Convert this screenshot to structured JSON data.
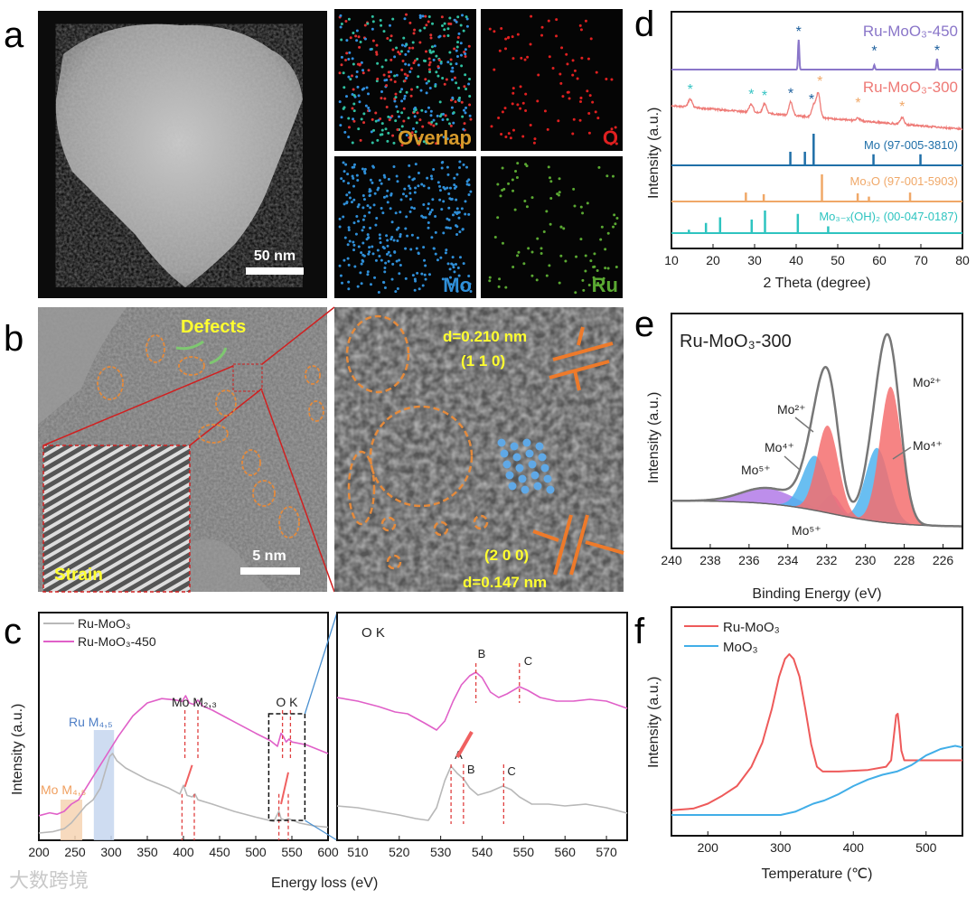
{
  "panel_labels": {
    "a": "a",
    "b": "b",
    "c": "c",
    "d": "d",
    "e": "e",
    "f": "f"
  },
  "panel_a": {
    "scale_bar": "50 nm",
    "maps": [
      {
        "label": "Overlap",
        "color": "#d79a2b"
      },
      {
        "label": "O",
        "color": "#e02020"
      },
      {
        "label": "Mo",
        "color": "#2f8fd8"
      },
      {
        "label": "Ru",
        "color": "#5aa832"
      }
    ]
  },
  "panel_b": {
    "defects_label": "Defects",
    "strain_label": "Strain",
    "scale_bar": "5 nm",
    "d1": "d=0.210 nm",
    "plane1": "(1 1 0)",
    "plane2": "(2 0 0)",
    "d2": "d=0.147 nm"
  },
  "watermark": "大数跨境",
  "chart_data": [
    {
      "id": "c-left",
      "type": "line",
      "xlabel": "Energy loss (eV)",
      "ylabel": "Intensity (a.u.)",
      "xlim": [
        200,
        600
      ],
      "xticks": [
        "200",
        "250",
        "300",
        "350",
        "400",
        "450",
        "500",
        "550",
        "600"
      ],
      "legend": [
        {
          "name": "Ru-MoO₃",
          "color": "#b8b8b8"
        },
        {
          "name": "Ru-MoO₃-450",
          "color": "#e060c8"
        }
      ],
      "legend_position": "top-left",
      "annotations": {
        "mo_m23": "Mo M₂,₃",
        "ok": "O K",
        "ru_m45": "Ru M₄,₅",
        "mo_m45": "Mo M₄,₅"
      },
      "shaded": [
        {
          "name": "Mo M4,5",
          "range": [
            230,
            260
          ],
          "color": "#f6d3b3"
        },
        {
          "name": "Ru M4,5",
          "range": [
            276,
            304
          ],
          "color": "#c6d6ef"
        }
      ],
      "dashed_box": [
        518,
        568
      ],
      "markers_gray": [
        398,
        415,
        532,
        545
      ],
      "markers_pink": [
        402,
        420,
        537,
        548
      ],
      "series": [
        {
          "name": "Ru-MoO₃-450",
          "color": "#e060c8",
          "x": [
            200,
            215,
            225,
            235,
            245,
            255,
            265,
            275,
            285,
            295,
            310,
            330,
            350,
            370,
            390,
            398,
            403,
            408,
            414,
            420,
            426,
            440,
            470,
            500,
            520,
            530,
            535,
            538,
            542,
            546,
            550,
            570,
            600
          ],
          "y": [
            0.17,
            0.19,
            0.18,
            0.2,
            0.25,
            0.28,
            0.36,
            0.44,
            0.52,
            0.6,
            0.72,
            0.86,
            0.95,
            0.98,
            0.97,
            0.96,
            1.0,
            0.95,
            0.94,
            0.97,
            0.93,
            0.9,
            0.82,
            0.74,
            0.69,
            0.65,
            0.74,
            0.72,
            0.68,
            0.7,
            0.68,
            0.66,
            0.6
          ]
        },
        {
          "name": "Ru-MoO₃",
          "color": "#b8b8b8",
          "x": [
            200,
            220,
            235,
            245,
            255,
            265,
            275,
            285,
            292,
            298,
            302,
            308,
            320,
            350,
            380,
            395,
            400,
            405,
            412,
            416,
            420,
            440,
            470,
            500,
            525,
            532,
            535,
            540,
            545,
            560,
            580,
            600
          ],
          "y": [
            0.05,
            0.06,
            0.08,
            0.12,
            0.18,
            0.24,
            0.28,
            0.36,
            0.48,
            0.58,
            0.6,
            0.55,
            0.5,
            0.42,
            0.36,
            0.32,
            0.38,
            0.31,
            0.3,
            0.32,
            0.28,
            0.25,
            0.2,
            0.16,
            0.13,
            0.2,
            0.15,
            0.14,
            0.15,
            0.12,
            0.1,
            0.09
          ]
        }
      ]
    },
    {
      "id": "c-right",
      "type": "line",
      "title": "O K",
      "xlim": [
        505,
        575
      ],
      "xticks": [
        "510",
        "520",
        "530",
        "540",
        "550",
        "560",
        "570"
      ],
      "peak_labels_pink": [
        {
          "label": "B",
          "x": 538.5
        },
        {
          "label": "C",
          "x": 549
        }
      ],
      "peak_labels_gray": [
        {
          "label": "A",
          "x": 532.5
        },
        {
          "label": "B",
          "x": 535.5
        },
        {
          "label": "C",
          "x": 545.2
        }
      ],
      "series": [
        {
          "name": "Ru-MoO₃-450",
          "color": "#e060c8",
          "x": [
            505,
            510,
            515,
            519,
            522,
            526,
            529,
            531,
            533,
            535,
            537,
            538.5,
            540,
            542,
            544,
            546,
            549,
            551,
            554,
            558,
            562,
            566,
            570,
            575
          ],
          "y": [
            0.79,
            0.77,
            0.74,
            0.71,
            0.7,
            0.65,
            0.61,
            0.66,
            0.77,
            0.86,
            0.91,
            0.93,
            0.9,
            0.82,
            0.79,
            0.81,
            0.85,
            0.83,
            0.79,
            0.77,
            0.77,
            0.78,
            0.77,
            0.73
          ]
        },
        {
          "name": "Ru-MoO₃",
          "color": "#b8b8b8",
          "x": [
            505,
            510,
            515,
            520,
            524,
            527,
            529,
            531,
            532.5,
            534,
            535.5,
            537,
            539,
            542,
            545,
            547,
            549,
            552,
            556,
            560,
            565,
            570,
            575
          ],
          "y": [
            0.19,
            0.18,
            0.16,
            0.14,
            0.12,
            0.11,
            0.18,
            0.33,
            0.41,
            0.37,
            0.34,
            0.29,
            0.25,
            0.27,
            0.3,
            0.28,
            0.24,
            0.2,
            0.2,
            0.19,
            0.2,
            0.18,
            0.15
          ]
        }
      ]
    },
    {
      "id": "d",
      "type": "line",
      "xlabel": "2 Theta (degree)",
      "ylabel": "Intensity (a.u.)",
      "xlim": [
        10,
        80
      ],
      "xticks": [
        "10",
        "20",
        "30",
        "40",
        "50",
        "60",
        "70",
        "80"
      ],
      "patterns": [
        {
          "name": "Ru-MoO₃-450",
          "color": "#8a76c9",
          "kind": "measured",
          "peaks": [
            [
              40.6,
              1.0
            ],
            [
              58.8,
              0.15
            ],
            [
              73.9,
              0.36
            ]
          ],
          "stars": [
            {
              "x": 40.6,
              "color": "#1b5e9c"
            },
            {
              "x": 58.8,
              "color": "#1b5e9c"
            },
            {
              "x": 73.9,
              "color": "#1b5e9c"
            }
          ]
        },
        {
          "name": "Ru-MoO₃-300",
          "color": "#ee7a76",
          "kind": "measured",
          "peaks": [
            [
              14.5,
              0.3
            ],
            [
              29.2,
              0.3
            ],
            [
              32.4,
              0.35
            ],
            [
              38.7,
              0.5
            ],
            [
              44.2,
              0.45
            ],
            [
              45.3,
              0.9
            ],
            [
              54.9,
              0.1
            ],
            [
              65.5,
              0.25
            ]
          ],
          "stars": [
            {
              "x": 14.5,
              "color": "#35c3c3"
            },
            {
              "x": 29.2,
              "color": "#35c3c3"
            },
            {
              "x": 32.4,
              "color": "#35c3c3"
            },
            {
              "x": 38.7,
              "color": "#1b5e9c"
            },
            {
              "x": 43.7,
              "color": "#1b5e9c"
            },
            {
              "x": 45.7,
              "color": "#f0a868"
            },
            {
              "x": 54.9,
              "color": "#f0a868"
            },
            {
              "x": 65.5,
              "color": "#f0a868"
            }
          ]
        },
        {
          "name": "Mo (97-005-3810)",
          "color": "#1f6fa8",
          "kind": "reference",
          "sticks": [
            [
              38.6,
              0.43
            ],
            [
              42.1,
              0.43
            ],
            [
              44.2,
              1.0
            ],
            [
              58.6,
              0.35
            ],
            [
              69.9,
              0.35
            ]
          ]
        },
        {
          "name": "Mo₃O (97-001-5903)",
          "color": "#f0a868",
          "kind": "reference",
          "sticks": [
            [
              27.9,
              0.33
            ],
            [
              32.2,
              0.27
            ],
            [
              46.2,
              1.0
            ],
            [
              54.8,
              0.3
            ],
            [
              57.5,
              0.18
            ],
            [
              67.4,
              0.33
            ]
          ]
        },
        {
          "name": "Mo₃₋ₓ(OH)₂ (00-047-0187)",
          "color": "#2ec4c0",
          "kind": "reference",
          "sticks": [
            [
              14.2,
              0.15
            ],
            [
              18.3,
              0.45
            ],
            [
              21.7,
              0.7
            ],
            [
              29.3,
              0.6
            ],
            [
              32.5,
              1.0
            ],
            [
              40.4,
              0.85
            ],
            [
              47.7,
              0.3
            ]
          ]
        }
      ]
    },
    {
      "id": "e",
      "type": "area",
      "title": "Ru-MoO₃-300",
      "xlabel": "Binding Energy (eV)",
      "ylabel": "Intensity (a.u.)",
      "xlim": [
        240,
        225
      ],
      "xticks": [
        "240",
        "238",
        "236",
        "234",
        "232",
        "230",
        "228",
        "226"
      ],
      "components": [
        {
          "name": "Mo⁵⁺",
          "color": "#b27ae8",
          "center": 235.0,
          "fwhm": 3.2,
          "height": 0.11
        },
        {
          "name": "Mo⁵⁺",
          "color": "#b27ae8",
          "center": 231.7,
          "fwhm": 1.0,
          "height": 0.14
        },
        {
          "name": "Mo⁴⁺",
          "color": "#4fb3ee",
          "center": 232.6,
          "fwhm": 1.5,
          "height": 0.4
        },
        {
          "name": "Mo⁴⁺",
          "color": "#4fb3ee",
          "center": 229.4,
          "fwhm": 1.4,
          "height": 0.54
        },
        {
          "name": "Mo²⁺",
          "color": "#f46e6e",
          "center": 231.95,
          "fwhm": 1.3,
          "height": 0.64
        },
        {
          "name": "Mo²⁺",
          "color": "#f46e6e",
          "center": 228.7,
          "fwhm": 1.3,
          "height": 1.0
        }
      ],
      "labels": {
        "mo2_left": "Mo²⁺",
        "mo4_left": "Mo⁴⁺",
        "mo5_left": "Mo⁵⁺",
        "mo2_right": "Mo²⁺",
        "mo4_right": "Mo⁴⁺",
        "mo5_bottom": "Mo⁵⁺"
      }
    },
    {
      "id": "f",
      "type": "line",
      "xlabel": "Temperature (℃)",
      "ylabel": "Intensity (a.u.)",
      "xlim": [
        150,
        550
      ],
      "xticks": [
        "200",
        "300",
        "400",
        "500"
      ],
      "legend_position": "top-left",
      "series": [
        {
          "name": "Ru-MoO₃",
          "color": "#ee5a5a",
          "x": [
            150,
            180,
            200,
            220,
            240,
            260,
            275,
            288,
            298,
            306,
            312,
            318,
            326,
            334,
            342,
            350,
            358,
            365,
            380,
            420,
            445,
            452,
            456,
            459,
            461,
            463,
            466,
            470,
            476,
            500,
            550
          ],
          "y": [
            0.03,
            0.04,
            0.07,
            0.12,
            0.18,
            0.3,
            0.45,
            0.66,
            0.86,
            0.97,
            1.0,
            0.97,
            0.86,
            0.66,
            0.44,
            0.3,
            0.27,
            0.27,
            0.27,
            0.28,
            0.3,
            0.34,
            0.5,
            0.62,
            0.63,
            0.55,
            0.4,
            0.34,
            0.34,
            0.34,
            0.34
          ]
        },
        {
          "name": "MoO₃",
          "color": "#41aee8",
          "x": [
            150,
            200,
            250,
            300,
            320,
            335,
            345,
            360,
            380,
            400,
            420,
            440,
            460,
            470,
            480,
            490,
            500,
            510,
            520,
            530,
            540,
            550
          ],
          "y": [
            0.0,
            0.0,
            0.0,
            0.0,
            0.02,
            0.05,
            0.07,
            0.09,
            0.13,
            0.18,
            0.22,
            0.25,
            0.27,
            0.29,
            0.31,
            0.34,
            0.37,
            0.39,
            0.41,
            0.42,
            0.43,
            0.42
          ]
        }
      ]
    }
  ]
}
